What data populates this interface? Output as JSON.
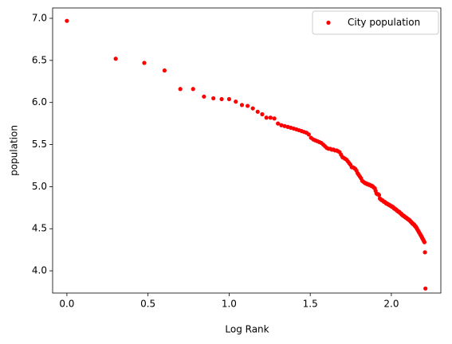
{
  "chart_data": {
    "type": "scatter",
    "xlabel": "Log Rank",
    "ylabel": "population",
    "xlim": [
      -0.088,
      2.305
    ],
    "ylim": [
      3.736,
      7.123
    ],
    "xticks": [
      {
        "value": 0,
        "label": "0.0"
      },
      {
        "value": 0.5,
        "label": "0.5"
      },
      {
        "value": 1,
        "label": "1.0"
      },
      {
        "value": 1.5,
        "label": "1.5"
      },
      {
        "value": 2,
        "label": "2.0"
      }
    ],
    "yticks": [
      {
        "value": 4,
        "label": "4.0"
      },
      {
        "value": 4.5,
        "label": "4.5"
      },
      {
        "value": 5,
        "label": "5.0"
      },
      {
        "value": 5.5,
        "label": "5.5"
      },
      {
        "value": 6,
        "label": "6.0"
      },
      {
        "value": 6.5,
        "label": "6.5"
      },
      {
        "value": 7,
        "label": "7.0"
      }
    ],
    "legend": "upper right",
    "x": [
      0,
      0.301,
      0.477,
      0.602,
      0.699,
      0.778,
      0.845,
      0.903,
      0.954,
      1,
      1.041,
      1.079,
      1.114,
      1.146,
      1.176,
      1.204,
      1.23,
      1.255,
      1.279,
      1.301,
      1.322,
      1.342,
      1.362,
      1.38,
      1.398,
      1.415,
      1.431,
      1.447,
      1.462,
      1.477,
      1.491,
      1.505,
      1.519,
      1.531,
      1.544,
      1.556,
      1.568,
      1.58,
      1.591,
      1.602,
      1.613,
      1.623,
      1.633,
      1.643,
      1.653,
      1.663,
      1.672,
      1.681,
      1.69,
      1.699,
      1.708,
      1.716,
      1.724,
      1.732,
      1.74,
      1.748,
      1.756,
      1.763,
      1.771,
      1.778,
      1.785,
      1.792,
      1.799,
      1.806,
      1.813,
      1.82,
      1.826,
      1.833,
      1.839,
      1.845,
      1.851,
      1.857,
      1.863,
      1.869,
      1.875,
      1.881,
      1.886,
      1.892,
      1.898,
      1.903,
      1.908,
      1.914,
      1.919,
      1.924,
      1.929,
      1.934,
      1.94,
      1.944,
      1.949,
      1.954,
      1.959,
      1.964,
      1.968,
      1.973,
      1.978,
      1.982,
      1.987,
      1.991,
      1.996,
      2,
      2.004,
      2.009,
      2.013,
      2.017,
      2.021,
      2.025,
      2.029,
      2.033,
      2.037,
      2.041,
      2.045,
      2.049,
      2.053,
      2.057,
      2.061,
      2.064,
      2.068,
      2.072,
      2.076,
      2.079,
      2.083,
      2.086,
      2.09,
      2.093,
      2.097,
      2.1,
      2.104,
      2.107,
      2.111,
      2.114,
      2.117,
      2.121,
      2.124,
      2.127,
      2.13,
      2.134,
      2.137,
      2.14,
      2.143,
      2.146,
      2.149,
      2.152,
      2.155,
      2.158,
      2.161,
      2.164,
      2.167,
      2.17,
      2.173,
      2.176,
      2.179,
      2.182,
      2.185,
      2.188,
      2.19,
      2.193,
      2.196,
      2.199,
      2.201,
      2.204,
      2.207,
      2.21
    ],
    "series": [
      {
        "name": "City population",
        "color": "#ff0000",
        "values": [
          6.97,
          6.52,
          6.47,
          6.38,
          6.16,
          6.16,
          6.07,
          6.05,
          6.04,
          6.04,
          6.01,
          5.97,
          5.96,
          5.93,
          5.89,
          5.86,
          5.82,
          5.82,
          5.81,
          5.75,
          5.73,
          5.72,
          5.71,
          5.7,
          5.69,
          5.68,
          5.67,
          5.66,
          5.65,
          5.64,
          5.62,
          5.58,
          5.56,
          5.55,
          5.54,
          5.53,
          5.52,
          5.5,
          5.48,
          5.46,
          5.45,
          5.45,
          5.44,
          5.44,
          5.43,
          5.43,
          5.42,
          5.41,
          5.38,
          5.35,
          5.34,
          5.33,
          5.32,
          5.3,
          5.28,
          5.26,
          5.23,
          5.23,
          5.22,
          5.21,
          5.19,
          5.16,
          5.14,
          5.12,
          5.1,
          5.07,
          5.06,
          5.05,
          5.04,
          5.04,
          5.03,
          5.03,
          5.02,
          5.02,
          5.01,
          5.01,
          5,
          4.99,
          4.98,
          4.95,
          4.92,
          4.91,
          4.91,
          4.9,
          4.86,
          4.85,
          4.84,
          4.84,
          4.83,
          4.82,
          4.82,
          4.81,
          4.8,
          4.8,
          4.79,
          4.79,
          4.78,
          4.78,
          4.77,
          4.77,
          4.76,
          4.76,
          4.75,
          4.74,
          4.74,
          4.73,
          4.73,
          4.72,
          4.71,
          4.71,
          4.7,
          4.7,
          4.69,
          4.68,
          4.68,
          4.67,
          4.66,
          4.66,
          4.65,
          4.65,
          4.64,
          4.64,
          4.63,
          4.63,
          4.62,
          4.62,
          4.61,
          4.61,
          4.6,
          4.6,
          4.59,
          4.58,
          4.58,
          4.57,
          4.56,
          4.56,
          4.55,
          4.55,
          4.54,
          4.53,
          4.53,
          4.52,
          4.51,
          4.5,
          4.49,
          4.48,
          4.47,
          4.46,
          4.45,
          4.44,
          4.43,
          4.42,
          4.41,
          4.4,
          4.39,
          4.38,
          4.37,
          4.36,
          4.35,
          4.34,
          4.22,
          3.79
        ]
      }
    ]
  }
}
